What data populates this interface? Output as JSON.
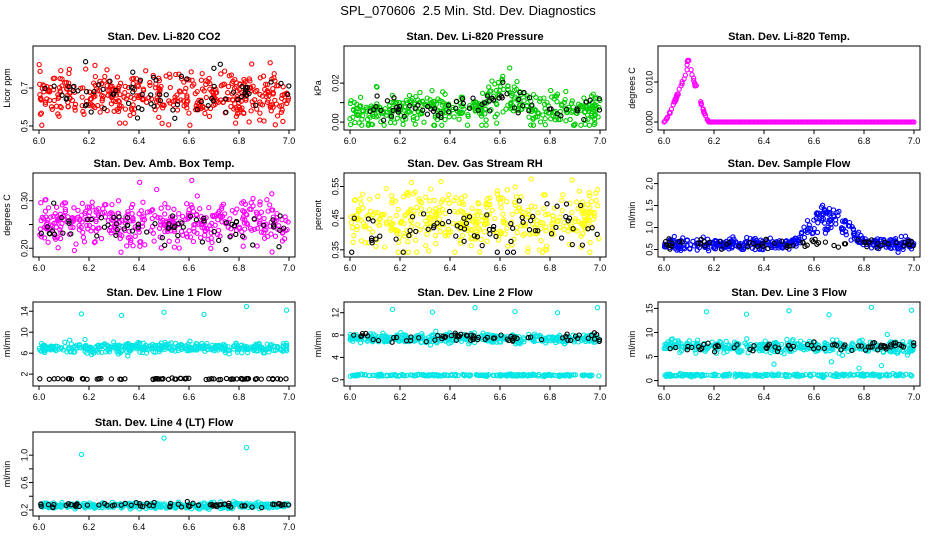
{
  "figure_title": "SPL_070606  2.5 Min. Std. Dev. Diagnostics",
  "chart_data": [
    {
      "type": "scatter",
      "title": "Stan. Dev. Li-820 CO2",
      "xlabel": "",
      "ylabel": "Licor ppm",
      "xlim": [
        6.0,
        7.0
      ],
      "ylim": [
        0.5,
        0.9
      ],
      "xticks": [
        6.0,
        6.2,
        6.4,
        6.6,
        6.8,
        7.0
      ],
      "xtick_labels": [
        "6.0",
        "6.2",
        "6.4",
        "6.6",
        "6.8",
        "7.0"
      ],
      "yticks": [
        0.5,
        0.7
      ],
      "ytick_labels": [
        "0.5",
        "0.7"
      ],
      "series": [
        {
          "name": "red",
          "color": "#ff0000",
          "n": 420,
          "base": 0.66,
          "noise": 0.06
        },
        {
          "name": "black",
          "color": "#000000",
          "n": 70,
          "base": 0.67,
          "noise": 0.07
        }
      ]
    },
    {
      "type": "scatter",
      "title": "Stan. Dev. Li-820 Pressure",
      "xlabel": "",
      "ylabel": "kPa",
      "xlim": [
        6.0,
        7.0
      ],
      "ylim": [
        -0.002,
        0.037
      ],
      "xticks": [
        6.0,
        6.2,
        6.4,
        6.6,
        6.8,
        7.0
      ],
      "xtick_labels": [
        "6.0",
        "6.2",
        "6.4",
        "6.6",
        "6.8",
        "7.0"
      ],
      "yticks": [
        0.0,
        0.01,
        0.02
      ],
      "ytick_labels": [
        "0.00",
        "",
        "0.02"
      ],
      "series": [
        {
          "name": "green",
          "color": "#00cc00",
          "n": 420,
          "base": 0.006,
          "noise": 0.004,
          "bump": {
            "center": 6.62,
            "width": 0.08,
            "height": 0.008
          }
        },
        {
          "name": "black",
          "color": "#000000",
          "n": 70,
          "base": 0.007,
          "noise": 0.003,
          "bump": {
            "center": 6.62,
            "width": 0.08,
            "height": 0.006
          }
        }
      ]
    },
    {
      "type": "scatter",
      "title": "Stan. Dev. Li-820 Temp.",
      "xlabel": "",
      "ylabel": "degrees C",
      "xlim": [
        6.0,
        7.0
      ],
      "ylim": [
        -0.001,
        0.018
      ],
      "xticks": [
        6.0,
        6.2,
        6.4,
        6.6,
        6.8,
        7.0
      ],
      "xtick_labels": [
        "6.0",
        "6.2",
        "6.4",
        "6.6",
        "6.8",
        "7.0"
      ],
      "yticks": [
        0.0,
        0.01
      ],
      "ytick_labels": [
        "0.000",
        "0.010"
      ],
      "series": [
        {
          "name": "magenta",
          "color": "#ff00ff",
          "n": 60,
          "profile": "hump",
          "hump": {
            "start": 6.0,
            "peak": 6.1,
            "end": 6.18,
            "height": 0.0165
          }
        },
        {
          "name": "magenta-flat",
          "color": "#ff00ff",
          "n": 160,
          "profile": "flat",
          "range": [
            6.18,
            7.0
          ],
          "base": 0.0
        }
      ]
    },
    {
      "type": "scatter",
      "title": "Stan. Dev. Amb. Box Temp.",
      "xlabel": "",
      "ylabel": "degrees C",
      "xlim": [
        6.0,
        7.0
      ],
      "ylim": [
        0.19,
        0.35
      ],
      "xticks": [
        6.0,
        6.2,
        6.4,
        6.6,
        6.8,
        7.0
      ],
      "xtick_labels": [
        "6.0",
        "6.2",
        "6.4",
        "6.6",
        "6.8",
        "7.0"
      ],
      "yticks": [
        0.2,
        0.25,
        0.3
      ],
      "ytick_labels": [
        "0.20",
        "",
        "0.30"
      ],
      "series": [
        {
          "name": "magenta",
          "color": "#ff00ff",
          "n": 420,
          "base": 0.255,
          "noise": 0.025
        },
        {
          "name": "black",
          "color": "#000000",
          "n": 70,
          "base": 0.245,
          "noise": 0.02
        }
      ]
    },
    {
      "type": "scatter",
      "title": "Stan. Dev. Gas Stream RH",
      "xlabel": "",
      "ylabel": "percent",
      "xlim": [
        6.0,
        7.0
      ],
      "ylim": [
        0.34,
        0.58
      ],
      "xticks": [
        6.0,
        6.2,
        6.4,
        6.6,
        6.8,
        7.0
      ],
      "xtick_labels": [
        "6.0",
        "6.2",
        "6.4",
        "6.6",
        "6.8",
        "7.0"
      ],
      "yticks": [
        0.35,
        0.45,
        0.55
      ],
      "ytick_labels": [
        "0.35",
        "0.45",
        "0.55"
      ],
      "series": [
        {
          "name": "yellow",
          "color": "#ffff00",
          "n": 420,
          "base": 0.44,
          "noise": 0.045
        },
        {
          "name": "black",
          "color": "#000000",
          "n": 70,
          "base": 0.42,
          "noise": 0.04
        }
      ]
    },
    {
      "type": "scatter",
      "title": "Stan. Dev. Sample Flow",
      "xlabel": "",
      "ylabel": "ml/min",
      "xlim": [
        6.0,
        7.0
      ],
      "ylim": [
        0.42,
        2.15
      ],
      "xticks": [
        6.0,
        6.2,
        6.4,
        6.6,
        6.8,
        7.0
      ],
      "xtick_labels": [
        "6.0",
        "6.2",
        "6.4",
        "6.6",
        "6.8",
        "7.0"
      ],
      "yticks": [
        0.5,
        1.0,
        1.5,
        2.0
      ],
      "ytick_labels": [
        "0.5",
        "1.0",
        "1.5",
        "2.0"
      ],
      "series": [
        {
          "name": "blue",
          "color": "#0000ff",
          "n": 420,
          "base": 0.62,
          "noise": 0.07,
          "bump": {
            "center": 6.66,
            "width": 0.1,
            "height": 0.6
          }
        },
        {
          "name": "black",
          "color": "#000000",
          "n": 70,
          "base": 0.62,
          "noise": 0.06
        }
      ]
    },
    {
      "type": "scatter",
      "title": "Stan. Dev. Line 1 Flow",
      "xlabel": "",
      "ylabel": "ml/min",
      "xlim": [
        6.0,
        7.0
      ],
      "ylim": [
        0.5,
        15
      ],
      "xticks": [
        6.0,
        6.2,
        6.4,
        6.6,
        6.8,
        7.0
      ],
      "xtick_labels": [
        "6.0",
        "6.2",
        "6.4",
        "6.6",
        "6.8",
        "7.0"
      ],
      "yticks": [
        2,
        6,
        10,
        14
      ],
      "ytick_labels": [
        "2",
        "6",
        "10",
        "14"
      ],
      "series": [
        {
          "name": "cyan",
          "color": "#00e5e5",
          "n": 420,
          "base": 7.0,
          "noise": 0.45
        },
        {
          "name": "black",
          "color": "#000000",
          "n": 70,
          "base": 1.1,
          "noise": 0.08
        },
        {
          "name": "cyan-outliers",
          "color": "#00e5e5",
          "points": [
            [
              6.17,
              13.5
            ],
            [
              6.33,
              13.2
            ],
            [
              6.5,
              13.8
            ],
            [
              6.66,
              13.4
            ],
            [
              6.83,
              14.9
            ],
            [
              6.99,
              14.2
            ]
          ]
        }
      ]
    },
    {
      "type": "scatter",
      "title": "Stan. Dev. Line 2 Flow",
      "xlabel": "",
      "ylabel": "ml/min",
      "xlim": [
        6.0,
        7.0
      ],
      "ylim": [
        -0.4,
        13.2
      ],
      "xticks": [
        6.0,
        6.2,
        6.4,
        6.6,
        6.8,
        7.0
      ],
      "xtick_labels": [
        "6.0",
        "6.2",
        "6.4",
        "6.6",
        "6.8",
        "7.0"
      ],
      "yticks": [
        0,
        4,
        8,
        12
      ],
      "ytick_labels": [
        "0",
        "4",
        "8",
        "12"
      ],
      "series": [
        {
          "name": "cyan",
          "color": "#00e5e5",
          "n": 420,
          "base": 7.4,
          "noise": 0.4
        },
        {
          "name": "cyan-low",
          "color": "#00e5e5",
          "n": 220,
          "base": 0.8,
          "noise": 0.08
        },
        {
          "name": "black",
          "color": "#000000",
          "n": 70,
          "base": 7.6,
          "noise": 0.35
        },
        {
          "name": "cyan-outliers",
          "color": "#00e5e5",
          "points": [
            [
              6.17,
              12.6
            ],
            [
              6.33,
              12.1
            ],
            [
              6.5,
              12.9
            ],
            [
              6.66,
              12.2
            ],
            [
              6.83,
              12.0
            ],
            [
              6.99,
              12.9
            ]
          ]
        }
      ]
    },
    {
      "type": "scatter",
      "title": "Stan. Dev. Line 3 Flow",
      "xlabel": "",
      "ylabel": "ml/min",
      "xlim": [
        6.0,
        7.0
      ],
      "ylim": [
        -0.3,
        15.5
      ],
      "xticks": [
        6.0,
        6.2,
        6.4,
        6.6,
        6.8,
        7.0
      ],
      "xtick_labels": [
        "6.0",
        "6.2",
        "6.4",
        "6.6",
        "6.8",
        "7.0"
      ],
      "yticks": [
        0,
        5,
        10,
        15
      ],
      "ytick_labels": [
        "0",
        "5",
        "10",
        "15"
      ],
      "series": [
        {
          "name": "cyan",
          "color": "#00e5e5",
          "n": 420,
          "base": 7.0,
          "noise": 0.6
        },
        {
          "name": "cyan-low",
          "color": "#00e5e5",
          "n": 220,
          "base": 1.1,
          "noise": 0.15
        },
        {
          "name": "black",
          "color": "#000000",
          "n": 70,
          "base": 7.0,
          "noise": 0.45
        },
        {
          "name": "cyan-outliers",
          "color": "#00e5e5",
          "points": [
            [
              6.17,
              14.3
            ],
            [
              6.33,
              13.8
            ],
            [
              6.5,
              14.5
            ],
            [
              6.66,
              13.7
            ],
            [
              6.83,
              15.2
            ],
            [
              6.99,
              14.6
            ],
            [
              6.44,
              3.4
            ],
            [
              6.67,
              3.9
            ],
            [
              6.78,
              2.6
            ],
            [
              6.87,
              3.1
            ]
          ]
        }
      ]
    },
    {
      "type": "scatter",
      "title": "Stan. Dev. Line 4 (LT) Flow",
      "xlabel": "",
      "ylabel": "ml/min",
      "xlim": [
        6.0,
        7.0
      ],
      "ylim": [
        0.17,
        1.28
      ],
      "xticks": [
        6.0,
        6.2,
        6.4,
        6.6,
        6.8,
        7.0
      ],
      "xtick_labels": [
        "6.0",
        "6.2",
        "6.4",
        "6.6",
        "6.8",
        "7.0"
      ],
      "yticks": [
        0.2,
        0.4,
        0.6,
        0.8,
        1.0
      ],
      "ytick_labels": [
        "0.2",
        "",
        "0.6",
        "",
        "1.0"
      ],
      "series": [
        {
          "name": "cyan",
          "color": "#00e5e5",
          "n": 420,
          "base": 0.265,
          "noise": 0.02
        },
        {
          "name": "black",
          "color": "#000000",
          "n": 70,
          "base": 0.27,
          "noise": 0.02
        },
        {
          "name": "cyan-outliers",
          "color": "#00e5e5",
          "points": [
            [
              6.17,
              1.01
            ],
            [
              6.5,
              1.25
            ],
            [
              6.83,
              1.11
            ]
          ]
        }
      ]
    }
  ]
}
